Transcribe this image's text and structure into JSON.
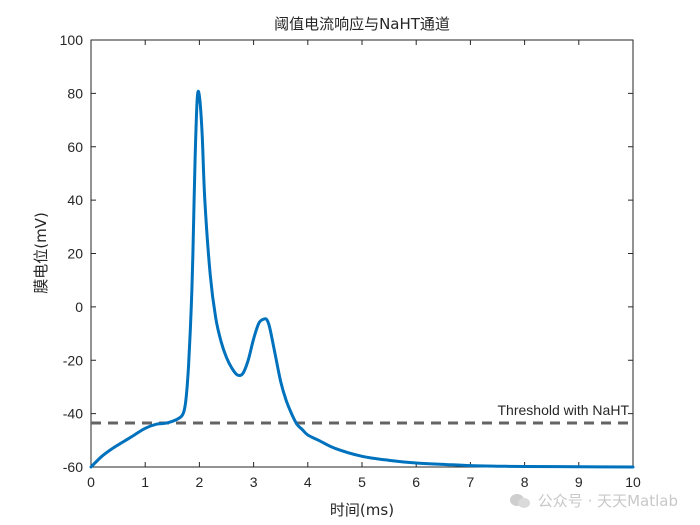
{
  "chart_data": {
    "type": "line",
    "title": "阈值电流响应与NaHT通道",
    "xlabel": "时间(ms)",
    "ylabel": "膜电位(mV)",
    "xlim": [
      0,
      10
    ],
    "ylim": [
      -60,
      100
    ],
    "xticks": [
      0,
      1,
      2,
      3,
      4,
      5,
      6,
      7,
      8,
      9,
      10
    ],
    "yticks": [
      -60,
      -40,
      -20,
      0,
      20,
      40,
      60,
      80,
      100
    ],
    "grid": false,
    "series": [
      {
        "color": "#0072BD",
        "x": [
          0,
          0.2,
          0.4,
          0.6,
          0.8,
          1.0,
          1.2,
          1.4,
          1.6,
          1.7,
          1.75,
          1.8,
          1.85,
          1.88,
          1.92,
          1.96,
          2.0,
          2.05,
          2.1,
          2.2,
          2.3,
          2.4,
          2.5,
          2.6,
          2.7,
          2.8,
          2.9,
          3.0,
          3.1,
          3.2,
          3.25,
          3.3,
          3.4,
          3.5,
          3.6,
          3.7,
          3.8,
          3.9,
          4.0,
          4.2,
          4.5,
          5.0,
          5.5,
          6.0,
          6.5,
          7.0,
          7.5,
          8.0,
          9.0,
          10.0
        ],
        "y": [
          -60,
          -56,
          -53,
          -50.5,
          -48,
          -45.5,
          -44,
          -43.5,
          -42,
          -40,
          -35,
          -22,
          0,
          20,
          55,
          78,
          79,
          65,
          40,
          12,
          -4,
          -13,
          -19,
          -23,
          -25.5,
          -25,
          -20,
          -12,
          -6,
          -4.5,
          -5,
          -8,
          -18,
          -28,
          -35,
          -40,
          -44,
          -46,
          -48,
          -50,
          -53,
          -56,
          -57.5,
          -58.5,
          -59,
          -59.5,
          -59.7,
          -59.8,
          -59.9,
          -60
        ]
      }
    ],
    "threshold": {
      "y": -43.5,
      "label": "Threshold with NaHT",
      "color": "#646464",
      "style": "dashed"
    }
  },
  "watermark": {
    "text": "公众号 · 天天Matlab"
  }
}
